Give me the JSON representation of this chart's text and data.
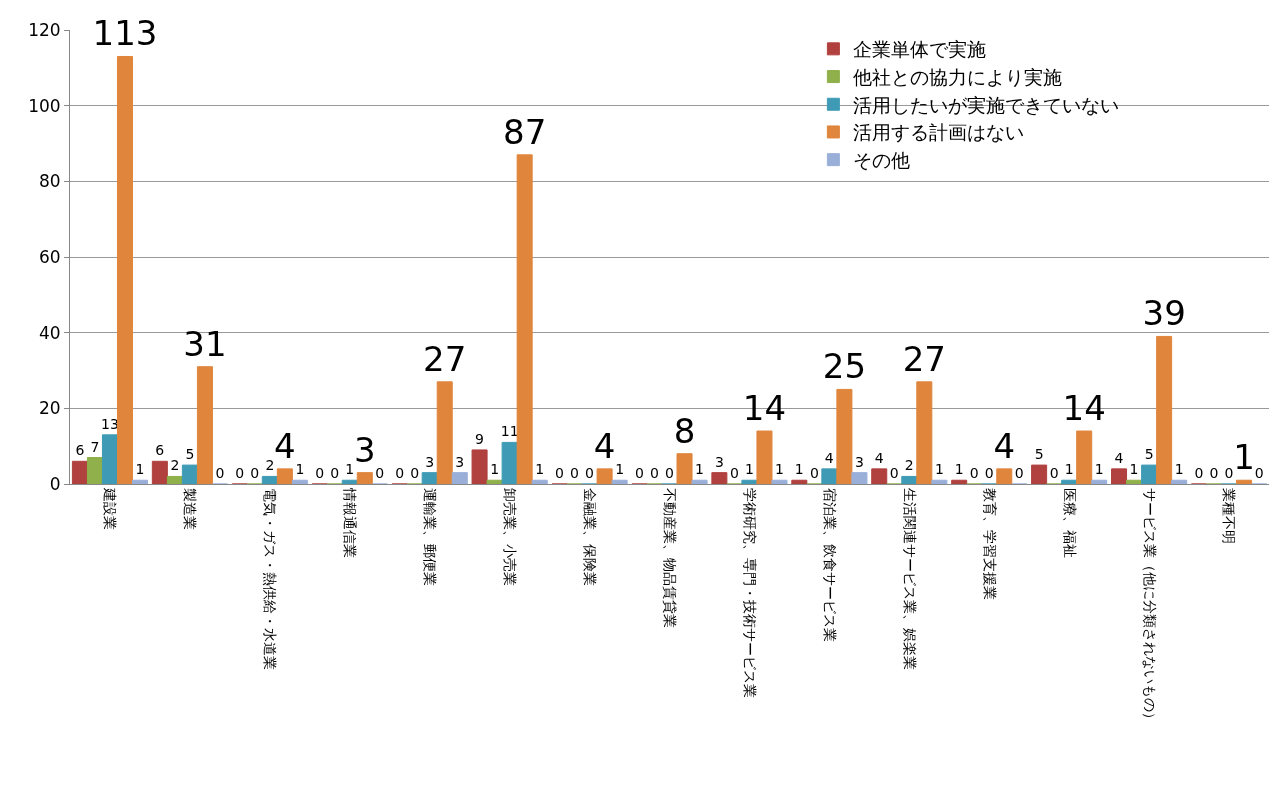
{
  "chart_data": {
    "type": "bar",
    "categories": [
      "建設業",
      "製造業",
      "電気・ガス・熱供給・水道業",
      "情報通信業",
      "運輸業、郵便業",
      "卸売業、小売業",
      "金融業、保険業",
      "不動産業、物品賃貸業",
      "学術研究、専門・技術サービス業",
      "宿泊業、飲食サービス業",
      "生活関連サービス業、娯楽業",
      "教育、学習支援業",
      "医療、福祉",
      "サービス業（他に分類されないもの）",
      "業種不明"
    ],
    "series": [
      {
        "name": "企業単体で実施",
        "color": "#b0413e",
        "values": [
          6,
          6,
          0,
          0,
          0,
          9,
          0,
          0,
          3,
          1,
          4,
          1,
          5,
          4,
          0
        ]
      },
      {
        "name": "他社との協力により実施",
        "color": "#8fb04a",
        "values": [
          7,
          2,
          0,
          0,
          0,
          1,
          0,
          0,
          0,
          0,
          0,
          0,
          0,
          1,
          0
        ]
      },
      {
        "name": "活用したいが実施できていない",
        "color": "#3f9bb5",
        "values": [
          13,
          5,
          2,
          1,
          3,
          11,
          0,
          0,
          1,
          4,
          2,
          0,
          1,
          5,
          0
        ]
      },
      {
        "name": "活用する計画はない",
        "color": "#e0853c",
        "values": [
          113,
          31,
          4,
          3,
          27,
          87,
          4,
          8,
          14,
          25,
          27,
          4,
          14,
          39,
          1
        ]
      },
      {
        "name": "その他",
        "color": "#9aafd8",
        "values": [
          1,
          0,
          1,
          0,
          3,
          1,
          1,
          1,
          1,
          3,
          1,
          0,
          1,
          1,
          0
        ]
      }
    ],
    "ylim": [
      0,
      120
    ],
    "yticks": [
      0,
      20,
      40,
      60,
      80,
      100,
      120
    ],
    "grid": "y",
    "legend": "top right",
    "data_labels": true
  }
}
